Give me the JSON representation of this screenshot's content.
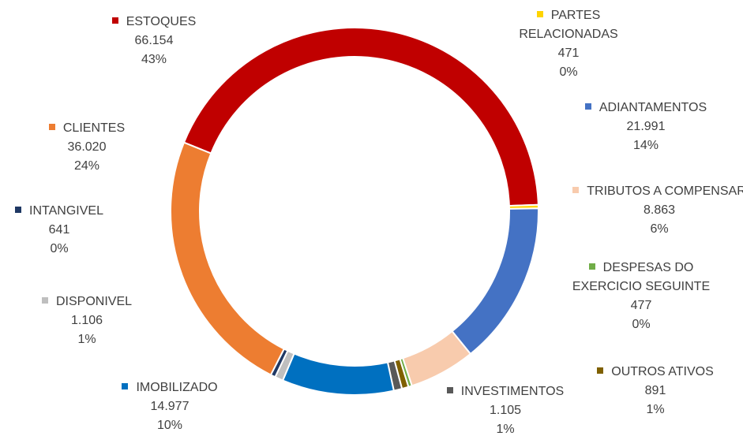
{
  "chart_data": {
    "type": "donut",
    "categories": [
      "ESTOQUES",
      "PARTES RELACIONADAS",
      "ADIANTAMENTOS",
      "TRIBUTOS A COMPENSAR",
      "DESPESAS DO EXERCICIO SEGUINTE",
      "OUTROS ATIVOS",
      "INVESTIMENTOS",
      "IMOBILIZADO",
      "DISPONIVEL",
      "INTANGIVEL",
      "CLIENTES"
    ],
    "values": [
      66154,
      471,
      21991,
      8863,
      477,
      891,
      1105,
      14977,
      1106,
      641,
      36020
    ],
    "value_labels": [
      "66.154",
      "471",
      "21.991",
      "8.863",
      "477",
      "891",
      "1.105",
      "14.977",
      "1.106",
      "641",
      "36.020"
    ],
    "percent_labels": [
      "43%",
      "0%",
      "14%",
      "6%",
      "0%",
      "1%",
      "1%",
      "10%",
      "1%",
      "0%",
      "24%"
    ],
    "colors": [
      "#c00000",
      "#ffd400",
      "#4472c4",
      "#f8cbad",
      "#70ad47",
      "#7f6000",
      "#595959",
      "#0070c0",
      "#bfbfbf",
      "#1f3864",
      "#ed7d31"
    ]
  }
}
